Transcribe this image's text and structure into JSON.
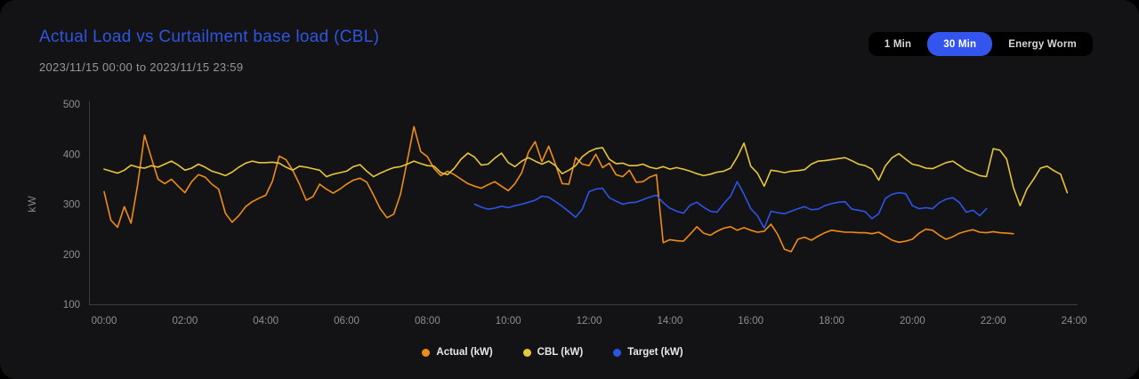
{
  "header": {
    "title": "Actual Load vs Curtailment base load (CBL)",
    "date_range": "2023/11/15 00:00 to 2023/11/15 23:59"
  },
  "toolbar": {
    "options": [
      "1 Min",
      "30 Min",
      "Energy Worm"
    ],
    "selected": "30 Min"
  },
  "colors": {
    "page_bg": "#000000",
    "card_bg": "#131316",
    "title": "#2f55e0",
    "accent": "#3355ee",
    "axis": "#3a3a40",
    "tick_text": "#8e8e93",
    "legend_text": "#e9e9ec"
  },
  "chart_data": {
    "type": "line",
    "title": "Actual Load vs Curtailment base load (CBL)",
    "subtitle": "2023/11/15 00:00 to 2023/11/15 23:59",
    "xlabel": "",
    "ylabel": "kW",
    "ylim": [
      100,
      500
    ],
    "xlim_hours": [
      0,
      24
    ],
    "grid": false,
    "legend_position": "bottom-center",
    "y_ticks": [
      100,
      200,
      300,
      400,
      500
    ],
    "x_ticks": [
      "00:00",
      "02:00",
      "04:00",
      "06:00",
      "08:00",
      "10:00",
      "12:00",
      "14:00",
      "16:00",
      "18:00",
      "20:00",
      "22:00",
      "24:00"
    ],
    "x_tick_hours": [
      0,
      2,
      4,
      6,
      8,
      10,
      12,
      14,
      16,
      18,
      20,
      22,
      24
    ],
    "series": [
      {
        "name": "Actual (kW)",
        "color": "#ef8c17",
        "start_hour": 0,
        "interval_min": 10,
        "values": [
          325,
          268,
          254,
          295,
          262,
          340,
          438,
          393,
          350,
          341,
          350,
          336,
          323,
          345,
          359,
          354,
          340,
          330,
          282,
          264,
          277,
          295,
          305,
          312,
          318,
          346,
          396,
          389,
          368,
          340,
          308,
          315,
          340,
          330,
          322,
          330,
          340,
          348,
          352,
          344,
          318,
          291,
          273,
          280,
          320,
          386,
          455,
          405,
          395,
          371,
          357,
          366,
          359,
          350,
          341,
          336,
          332,
          339,
          345,
          336,
          327,
          341,
          363,
          404,
          425,
          385,
          416,
          380,
          341,
          340,
          393,
          380,
          377,
          400,
          373,
          382,
          359,
          355,
          368,
          344,
          345,
          354,
          359,
          223,
          229,
          227,
          226,
          240,
          255,
          242,
          238,
          246,
          252,
          255,
          248,
          253,
          248,
          244,
          246,
          260,
          240,
          210,
          205,
          230,
          234,
          228,
          236,
          243,
          248,
          246,
          244,
          244,
          243,
          243,
          241,
          244,
          236,
          228,
          224,
          226,
          230,
          242,
          250,
          248,
          238,
          230,
          235,
          242,
          246,
          249,
          244,
          243,
          245,
          243,
          242,
          241
        ]
      },
      {
        "name": "CBL (kW)",
        "color": "#e6c63c",
        "start_hour": 0,
        "interval_min": 10,
        "values": [
          370,
          366,
          362,
          368,
          378,
          374,
          372,
          377,
          374,
          380,
          386,
          378,
          368,
          372,
          380,
          374,
          366,
          362,
          357,
          364,
          374,
          382,
          386,
          383,
          383,
          384,
          382,
          374,
          368,
          376,
          374,
          371,
          368,
          355,
          360,
          363,
          366,
          375,
          379,
          366,
          355,
          362,
          368,
          373,
          375,
          380,
          386,
          381,
          377,
          376,
          363,
          359,
          372,
          390,
          402,
          394,
          378,
          380,
          392,
          402,
          383,
          375,
          386,
          393,
          386,
          380,
          386,
          377,
          361,
          368,
          377,
          395,
          405,
          411,
          413,
          390,
          381,
          382,
          377,
          377,
          380,
          374,
          371,
          375,
          370,
          373,
          370,
          366,
          361,
          357,
          360,
          364,
          366,
          372,
          394,
          422,
          376,
          362,
          336,
          368,
          366,
          363,
          366,
          367,
          369,
          380,
          386,
          387,
          389,
          391,
          393,
          387,
          380,
          377,
          370,
          348,
          377,
          393,
          401,
          390,
          380,
          377,
          372,
          371,
          377,
          383,
          386,
          377,
          368,
          363,
          357,
          355,
          411,
          408,
          390,
          333,
          297,
          330,
          350,
          372,
          376,
          367,
          360,
          323
        ]
      },
      {
        "name": "Target (kW)",
        "color": "#2b55e2",
        "start_hour": 9.1667,
        "interval_min": 10,
        "values": [
          300,
          294,
          290,
          292,
          296,
          293,
          297,
          300,
          304,
          308,
          316,
          314,
          305,
          296,
          285,
          274,
          290,
          325,
          330,
          332,
          313,
          306,
          300,
          303,
          304,
          309,
          314,
          318,
          303,
          292,
          286,
          282,
          298,
          304,
          294,
          286,
          284,
          301,
          316,
          345,
          320,
          291,
          277,
          252,
          286,
          283,
          281,
          286,
          291,
          295,
          289,
          290,
          297,
          301,
          304,
          305,
          290,
          288,
          285,
          271,
          281,
          312,
          320,
          323,
          321,
          297,
          291,
          293,
          291,
          303,
          310,
          313,
          303,
          284,
          288,
          277,
          291
        ]
      }
    ]
  }
}
